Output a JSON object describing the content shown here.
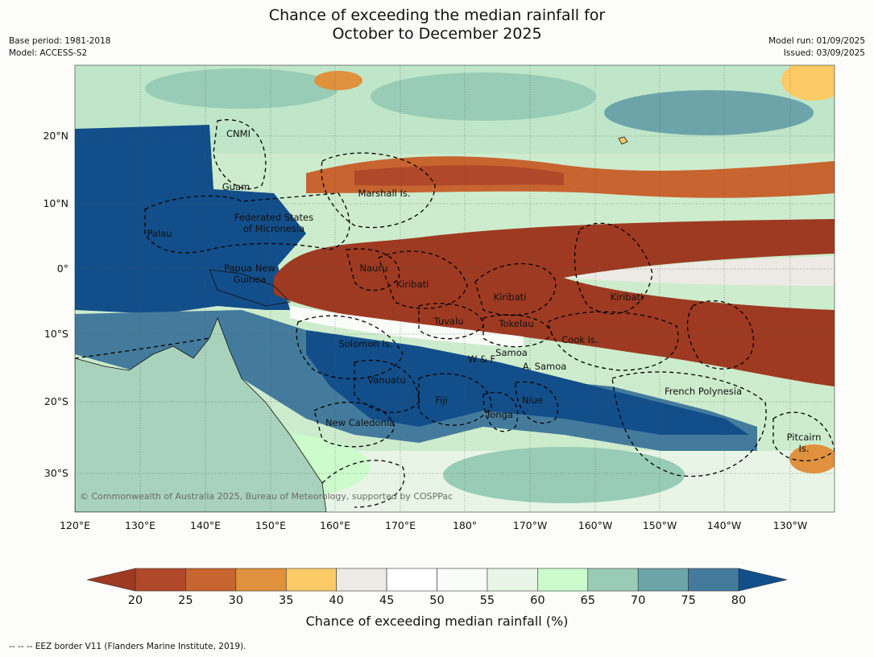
{
  "title": {
    "line1": "Chance of exceeding the median rainfall for",
    "line2": "October to December 2025"
  },
  "meta_left": {
    "base_period": "Base period: 1981-2018",
    "model": "Model: ACCESS-S2"
  },
  "meta_right": {
    "model_run": "Model run: 01/09/2025",
    "issued": "Issued: 03/09/2025"
  },
  "map": {
    "lon_labels": [
      "120°E",
      "130°E",
      "140°E",
      "150°E",
      "160°E",
      "170°E",
      "180°",
      "170°W",
      "160°W",
      "150°W",
      "140°W",
      "130°W"
    ],
    "lat_labels": [
      "20°N",
      "10°N",
      "0°",
      "10°S",
      "20°S",
      "30°S"
    ],
    "regions": [
      {
        "name": "CNMI"
      },
      {
        "name": "Guam"
      },
      {
        "name": "Marshall Is."
      },
      {
        "name": "Federated States\nof Micronesia"
      },
      {
        "name": "Palau"
      },
      {
        "name": "Nauru"
      },
      {
        "name": "Papua New\nGuinea"
      },
      {
        "name": "Kiribati"
      },
      {
        "name": "Kiribati"
      },
      {
        "name": "Kiribati"
      },
      {
        "name": "Tuvalu"
      },
      {
        "name": "Tokelau"
      },
      {
        "name": "Cook Is."
      },
      {
        "name": "Solomon Is."
      },
      {
        "name": "Samoa"
      },
      {
        "name": "W & F"
      },
      {
        "name": "A. Samoa"
      },
      {
        "name": "Vanuatu"
      },
      {
        "name": "Fiji"
      },
      {
        "name": "Niue"
      },
      {
        "name": "Tonga"
      },
      {
        "name": "French Polynesia"
      },
      {
        "name": "New Caledonia"
      },
      {
        "name": "Pitcairn\nIs."
      }
    ],
    "copyright": "© Commonwealth of Australia 2025, Bureau of Meteorology, supported by COSPPac"
  },
  "colorbar": {
    "ticks": [
      "20",
      "25",
      "30",
      "35",
      "40",
      "45",
      "50",
      "55",
      "60",
      "65",
      "70",
      "75",
      "80"
    ],
    "colors": [
      "#9e3a22",
      "#b0482a",
      "#c86430",
      "#e0913e",
      "#fccb66",
      "#edeae6",
      "#ffffff",
      "#fafcfa",
      "#e8f5e6",
      "#ccfccc",
      "#99ccb6",
      "#6ca4aa",
      "#447b9c",
      "#124e8a"
    ],
    "label": "Chance of exceeding median rainfall (%)"
  },
  "footer": "--  --  -- EEZ border V11 (Flanders Marine Institute, 2019)."
}
